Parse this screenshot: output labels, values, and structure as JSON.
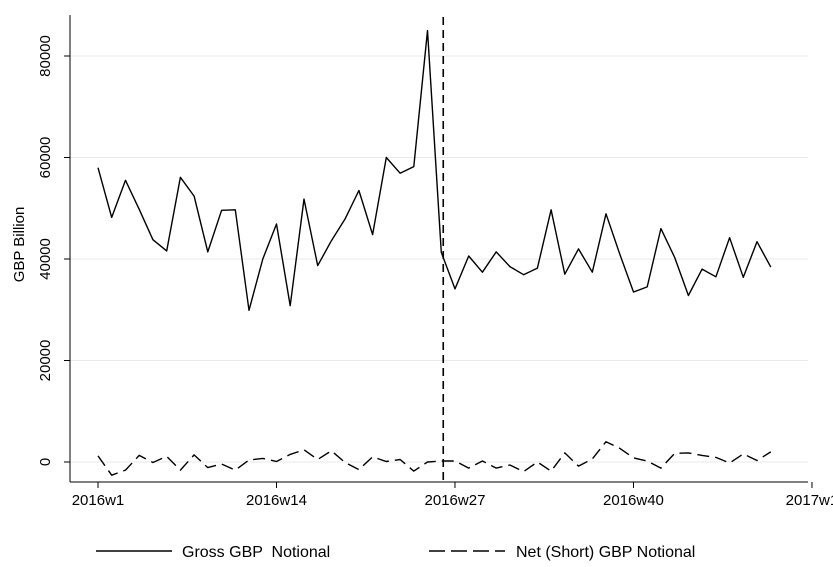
{
  "chart_data": {
    "type": "line",
    "ylabel": "GBP Billion",
    "xlabel": "",
    "title": "",
    "x_unit": "week",
    "x_ticks": [
      {
        "week": 1,
        "label": "2016w1"
      },
      {
        "week": 14,
        "label": "2016w14"
      },
      {
        "week": 27,
        "label": "2016w27"
      },
      {
        "week": 40,
        "label": "2016w40"
      },
      {
        "week": 53,
        "label": "2017w1"
      }
    ],
    "xlim": [
      1,
      53
    ],
    "y_ticks": [
      {
        "value": 0,
        "label": "0"
      },
      {
        "value": 20000,
        "label": "20000"
      },
      {
        "value": 40000,
        "label": "40000"
      },
      {
        "value": 60000,
        "label": "60000"
      },
      {
        "value": 80000,
        "label": "80000"
      }
    ],
    "ylim": [
      0,
      88000
    ],
    "grid": true,
    "vline": {
      "week": 26
    },
    "x": [
      1,
      2,
      3,
      4,
      5,
      6,
      7,
      8,
      9,
      10,
      11,
      12,
      13,
      14,
      15,
      16,
      17,
      18,
      19,
      20,
      21,
      22,
      23,
      24,
      25,
      26,
      27,
      28,
      29,
      30,
      31,
      32,
      33,
      34,
      35,
      36,
      37,
      38,
      39,
      40,
      41,
      42,
      43,
      44,
      45,
      46,
      47,
      48,
      49,
      50
    ],
    "series": [
      {
        "name": "Gross GBP  Notional",
        "style": "solid",
        "color": "#000000",
        "values": [
          58000,
          48200,
          55500,
          49800,
          43800,
          41600,
          56100,
          52400,
          41400,
          49600,
          49700,
          29900,
          40000,
          46900,
          30800,
          51800,
          38700,
          43600,
          47900,
          53500,
          44800,
          60000,
          56900,
          58200,
          85000,
          41300,
          34100,
          40600,
          37400,
          41400,
          38500,
          36900,
          38200,
          49700,
          37000,
          42000,
          37400,
          48900,
          41000,
          33500,
          34500,
          46000,
          40300,
          32800,
          38000,
          36500,
          44200,
          36400,
          43400,
          38400
        ]
      },
      {
        "name": "Net (Short) GBP Notional",
        "style": "dashed",
        "color": "#000000",
        "values": [
          1200,
          -2600,
          -1600,
          1300,
          -100,
          1100,
          -1600,
          1400,
          -1100,
          -400,
          -1600,
          400,
          700,
          100,
          1500,
          2400,
          500,
          2200,
          -100,
          -1500,
          1000,
          100,
          500,
          -1800,
          0,
          200,
          200,
          -1200,
          200,
          -1200,
          -600,
          -1900,
          0,
          -1800,
          1800,
          -800,
          600,
          4000,
          2700,
          800,
          200,
          -1200,
          1700,
          1800,
          1300,
          900,
          -200,
          1600,
          300,
          2000
        ]
      }
    ],
    "legend": "bottom"
  }
}
